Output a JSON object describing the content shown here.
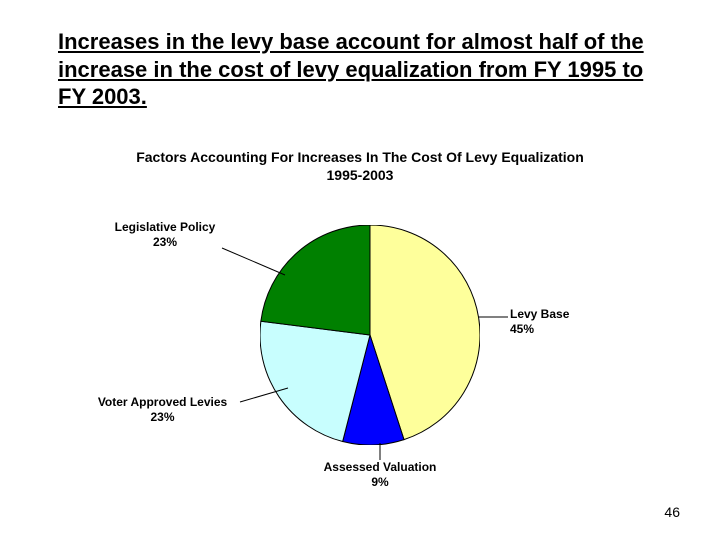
{
  "heading": "Increases in the levy base account for almost half of the increase in the cost of levy equalization from FY 1995 to FY 2003.",
  "chart": {
    "type": "pie",
    "title_line1": "Factors Accounting For Increases In The Cost Of Levy Equalization",
    "title_line2": "1995-2003",
    "title_fontsize": 14,
    "title_fontweight": "bold",
    "background_color": "#ffffff",
    "stroke_color": "#000000",
    "stroke_width": 1,
    "radius": 110,
    "start_angle_deg": -90,
    "direction": "clockwise",
    "label_fontsize": 12,
    "label_fontweight": "bold",
    "slices": [
      {
        "name": "Levy Base",
        "value": 45,
        "color": "#feff9b",
        "label_line1": "Levy Base",
        "label_line2": "45%"
      },
      {
        "name": "Assessed Valuation",
        "value": 9,
        "color": "#0000ff",
        "label_line1": "Assessed Valuation",
        "label_line2": "9%"
      },
      {
        "name": "Voter Approved Levies",
        "value": 23,
        "color": "#c8fefe",
        "label_line1": "Voter Approved Levies",
        "label_line2": "23%"
      },
      {
        "name": "Legislative Policy",
        "value": 23,
        "color": "#008000",
        "label_line1": "Legislative Policy",
        "label_line2": "23%"
      }
    ]
  },
  "labels": {
    "levy_base": {
      "line1": "Levy Base",
      "line2": "45%"
    },
    "assessed": {
      "line1": "Assessed Valuation",
      "line2": "9%"
    },
    "voter": {
      "line1": "Voter Approved Levies",
      "line2": "23%"
    },
    "legislative": {
      "line1": "Legislative Policy",
      "line2": "23%"
    }
  },
  "page_number": "46"
}
